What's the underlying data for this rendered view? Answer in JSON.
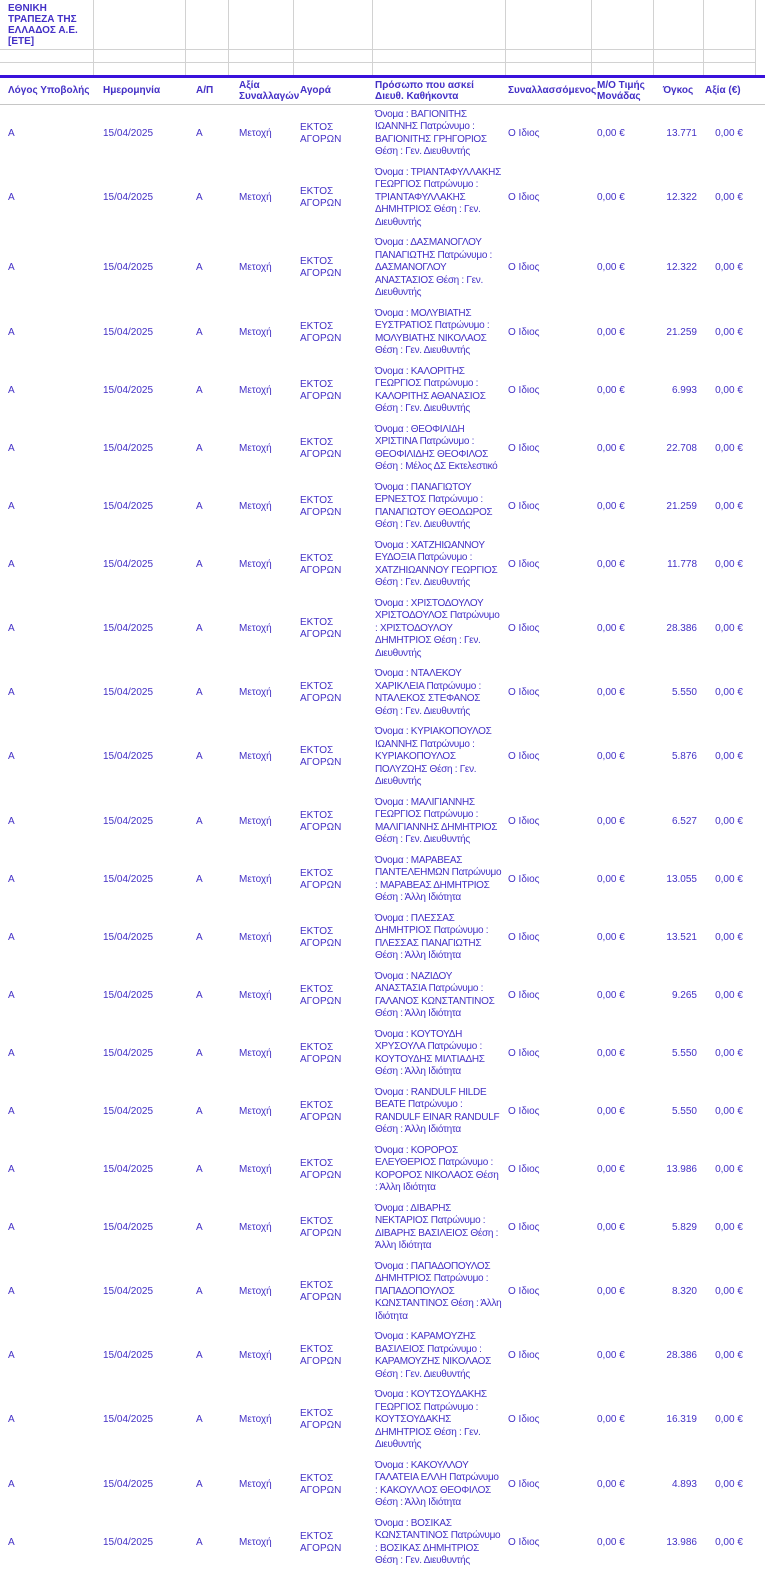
{
  "page": {
    "company": "ΕΘΝΙΚΗ ΤΡΑΠΕΖΑ ΤΗΣ ΕΛΛΑΔΟΣ Α.Ε. [ΕΤΕ]"
  },
  "colors": {
    "text_blue": "#4330c6",
    "rule_blue": "#3911dc",
    "grid_gray": "#d2d2d2",
    "thin_rule_gray": "#c6c6c6",
    "background": "#ffffff"
  },
  "table": {
    "headers": [
      "Λόγος Υποβολής",
      "Ημερομηνία",
      "Α/Π",
      "Αξία Συναλλαγών",
      "Αγορά",
      "Πρόσωπο που ασκεί Διευθ. Καθήκοντα",
      "Συναλλασσόμενος",
      "Μ/Ο Τιμής Μονάδας",
      "Όγκος",
      "Αξία (€)"
    ],
    "rows": [
      {
        "reason": "Α",
        "date": "15/04/2025",
        "ap": "Α",
        "transaction_type": "Μετοχή",
        "market": "ΕΚΤΟΣ ΑΓΟΡΩΝ",
        "person": "Όνομα : ΒΑΓΙΟΝΙΤΗΣ ΙΩΑΝΝΗΣ Πατρώνυμο : ΒΑΓΙΟΝΙΤΗΣ ΓΡΗΓΟΡΙΟΣ Θέση : Γεν. Διευθυντής",
        "counterparty": "Ο Ιδιος",
        "unit_price_avg": "0,00 €",
        "volume": "13.771",
        "value": "0,00 €"
      },
      {
        "reason": "Α",
        "date": "15/04/2025",
        "ap": "Α",
        "transaction_type": "Μετοχή",
        "market": "ΕΚΤΟΣ ΑΓΟΡΩΝ",
        "person": "Όνομα : ΤΡΙΑΝΤΑΦΥΛΛΑΚΗΣ ΓΕΩΡΓΙΟΣ Πατρώνυμο : ΤΡΙΑΝΤΑΦΥΛΛΑΚΗΣ ΔΗΜΗΤΡΙΟΣ Θέση : Γεν. Διευθυντής",
        "counterparty": "Ο Ιδιος",
        "unit_price_avg": "0,00 €",
        "volume": "12.322",
        "value": "0,00 €"
      },
      {
        "reason": "Α",
        "date": "15/04/2025",
        "ap": "Α",
        "transaction_type": "Μετοχή",
        "market": "ΕΚΤΟΣ ΑΓΟΡΩΝ",
        "person": "Όνομα : ΔΑΣΜΑΝΟΓΛΟΥ ΠΑΝΑΓΙΩΤΗΣ Πατρώνυμο : ΔΑΣΜΑΝΟΓΛΟΥ ΑΝΑΣΤΑΣΙΟΣ Θέση : Γεν. Διευθυντής",
        "counterparty": "Ο Ιδιος",
        "unit_price_avg": "0,00 €",
        "volume": "12.322",
        "value": "0,00 €"
      },
      {
        "reason": "Α",
        "date": "15/04/2025",
        "ap": "Α",
        "transaction_type": "Μετοχή",
        "market": "ΕΚΤΟΣ ΑΓΟΡΩΝ",
        "person": "Όνομα : ΜΟΛΥΒΙΑΤΗΣ ΕΥΣΤΡΑΤΙΟΣ Πατρώνυμο : ΜΟΛΥΒΙΑΤΗΣ ΝΙΚΟΛΑΟΣ Θέση : Γεν. Διευθυντής",
        "counterparty": "Ο Ιδιος",
        "unit_price_avg": "0,00 €",
        "volume": "21.259",
        "value": "0,00 €"
      },
      {
        "reason": "Α",
        "date": "15/04/2025",
        "ap": "Α",
        "transaction_type": "Μετοχή",
        "market": "ΕΚΤΟΣ ΑΓΟΡΩΝ",
        "person": "Όνομα : ΚΑΛΟΡΙΤΗΣ ΓΕΩΡΓΙΟΣ Πατρώνυμο : ΚΑΛΟΡΙΤΗΣ ΑΘΑΝΑΣΙΟΣ Θέση : Γεν. Διευθυντής",
        "counterparty": "Ο Ιδιος",
        "unit_price_avg": "0,00 €",
        "volume": "6.993",
        "value": "0,00 €"
      },
      {
        "reason": "Α",
        "date": "15/04/2025",
        "ap": "Α",
        "transaction_type": "Μετοχή",
        "market": "ΕΚΤΟΣ ΑΓΟΡΩΝ",
        "person": "Όνομα : ΘΕΟΦΙΛΙΔΗ ΧΡΙΣΤΙΝΑ Πατρώνυμο : ΘΕΟΦΙΛΙΔΗΣ ΘΕΟΦΙΛΟΣ Θέση : Μέλος ΔΣ Εκτελεστικό",
        "counterparty": "Ο Ιδιος",
        "unit_price_avg": "0,00 €",
        "volume": "22.708",
        "value": "0,00 €"
      },
      {
        "reason": "Α",
        "date": "15/04/2025",
        "ap": "Α",
        "transaction_type": "Μετοχή",
        "market": "ΕΚΤΟΣ ΑΓΟΡΩΝ",
        "person": "Όνομα : ΠΑΝΑΓΙΩΤΟΥ ΕΡΝΕΣΤΟΣ Πατρώνυμο : ΠΑΝΑΓΙΩΤΟΥ ΘΕΟΔΩΡΟΣ Θέση : Γεν. Διευθυντής",
        "counterparty": "Ο Ιδιος",
        "unit_price_avg": "0,00 €",
        "volume": "21.259",
        "value": "0,00 €"
      },
      {
        "reason": "Α",
        "date": "15/04/2025",
        "ap": "Α",
        "transaction_type": "Μετοχή",
        "market": "ΕΚΤΟΣ ΑΓΟΡΩΝ",
        "person": "Όνομα : ΧΑΤΖΗΙΩΑΝΝΟΥ ΕΥΔΟΞΙΑ Πατρώνυμο : ΧΑΤΖΗΙΩΑΝΝΟΥ ΓΕΩΡΓΙΟΣ Θέση : Γεν. Διευθυντής",
        "counterparty": "Ο Ιδιος",
        "unit_price_avg": "0,00 €",
        "volume": "11.778",
        "value": "0,00 €"
      },
      {
        "reason": "Α",
        "date": "15/04/2025",
        "ap": "Α",
        "transaction_type": "Μετοχή",
        "market": "ΕΚΤΟΣ ΑΓΟΡΩΝ",
        "person": "Όνομα : ΧΡΙΣΤΟΔΟΥΛΟΥ ΧΡΙΣΤΟΔΟΥΛΟΣ Πατρώνυμο : ΧΡΙΣΤΟΔΟΥΛΟΥ ΔΗΜΗΤΡΙΟΣ Θέση : Γεν. Διευθυντής",
        "counterparty": "Ο Ιδιος",
        "unit_price_avg": "0,00 €",
        "volume": "28.386",
        "value": "0,00 €"
      },
      {
        "reason": "Α",
        "date": "15/04/2025",
        "ap": "Α",
        "transaction_type": "Μετοχή",
        "market": "ΕΚΤΟΣ ΑΓΟΡΩΝ",
        "person": "Όνομα : ΝΤΑΛΕΚΟΥ ΧΑΡΙΚΛΕΙΑ Πατρώνυμο : ΝΤΑΛΕΚΟΣ ΣΤΕΦΑΝΟΣ Θέση : Γεν. Διευθυντής",
        "counterparty": "Ο Ιδιος",
        "unit_price_avg": "0,00 €",
        "volume": "5.550",
        "value": "0,00 €"
      },
      {
        "reason": "Α",
        "date": "15/04/2025",
        "ap": "Α",
        "transaction_type": "Μετοχή",
        "market": "ΕΚΤΟΣ ΑΓΟΡΩΝ",
        "person": "Όνομα : ΚΥΡΙΑΚΟΠΟΥΛΟΣ ΙΩΑΝΝΗΣ Πατρώνυμο : ΚΥΡΙΑΚΟΠΟΥΛΟΣ ΠΟΛΥΖΩΗΣ Θέση : Γεν. Διευθυντής",
        "counterparty": "Ο Ιδιος",
        "unit_price_avg": "0,00 €",
        "volume": "5.876",
        "value": "0,00 €"
      },
      {
        "reason": "Α",
        "date": "15/04/2025",
        "ap": "Α",
        "transaction_type": "Μετοχή",
        "market": "ΕΚΤΟΣ ΑΓΟΡΩΝ",
        "person": "Όνομα : ΜΑΛΙΓΙΑΝΝΗΣ ΓΕΩΡΓΙΟΣ Πατρώνυμο : ΜΑΛΙΓΙΑΝΝΗΣ ΔΗΜΗΤΡΙΟΣ Θέση : Γεν. Διευθυντής",
        "counterparty": "Ο Ιδιος",
        "unit_price_avg": "0,00 €",
        "volume": "6.527",
        "value": "0,00 €"
      },
      {
        "reason": "Α",
        "date": "15/04/2025",
        "ap": "Α",
        "transaction_type": "Μετοχή",
        "market": "ΕΚΤΟΣ ΑΓΟΡΩΝ",
        "person": "Όνομα : ΜΑΡΑΒΕΑΣ ΠΑΝΤΕΛΕΗΜΩΝ Πατρώνυμο : ΜΑΡΑΒΕΑΣ ΔΗΜΗΤΡΙΟΣ Θέση : Άλλη Ιδιότητα",
        "counterparty": "Ο Ιδιος",
        "unit_price_avg": "0,00 €",
        "volume": "13.055",
        "value": "0,00 €"
      },
      {
        "reason": "Α",
        "date": "15/04/2025",
        "ap": "Α",
        "transaction_type": "Μετοχή",
        "market": "ΕΚΤΟΣ ΑΓΟΡΩΝ",
        "person": "Όνομα : ΠΛΕΣΣΑΣ ΔΗΜΗΤΡΙΟΣ Πατρώνυμο : ΠΛΕΣΣΑΣ ΠΑΝΑΓΙΩΤΗΣ Θέση : Άλλη Ιδιότητα",
        "counterparty": "Ο Ιδιος",
        "unit_price_avg": "0,00 €",
        "volume": "13.521",
        "value": "0,00 €"
      },
      {
        "reason": "Α",
        "date": "15/04/2025",
        "ap": "Α",
        "transaction_type": "Μετοχή",
        "market": "ΕΚΤΟΣ ΑΓΟΡΩΝ",
        "person": "Όνομα : ΝΑΖΙΔΟΥ ΑΝΑΣΤΑΣΙΑ Πατρώνυμο : ΓΑΛΑΝΟΣ ΚΩΝΣΤΑΝΤΙΝΟΣ Θέση : Άλλη Ιδιότητα",
        "counterparty": "Ο Ιδιος",
        "unit_price_avg": "0,00 €",
        "volume": "9.265",
        "value": "0,00 €"
      },
      {
        "reason": "Α",
        "date": "15/04/2025",
        "ap": "Α",
        "transaction_type": "Μετοχή",
        "market": "ΕΚΤΟΣ ΑΓΟΡΩΝ",
        "person": "Όνομα : ΚΟΥΤΟΥΔΗ ΧΡΥΣΟΥΛΑ Πατρώνυμο : ΚΟΥΤΟΥΔΗΣ ΜΙΛΤΙΑΔΗΣ Θέση : Άλλη Ιδιότητα",
        "counterparty": "Ο Ιδιος",
        "unit_price_avg": "0,00 €",
        "volume": "5.550",
        "value": "0,00 €"
      },
      {
        "reason": "Α",
        "date": "15/04/2025",
        "ap": "Α",
        "transaction_type": "Μετοχή",
        "market": "ΕΚΤΟΣ ΑΓΟΡΩΝ",
        "person": "Όνομα : RANDULF HILDE BEATE Πατρώνυμο : RANDULF EINAR RANDULF Θέση : Άλλη Ιδιότητα",
        "counterparty": "Ο Ιδιος",
        "unit_price_avg": "0,00 €",
        "volume": "5.550",
        "value": "0,00 €"
      },
      {
        "reason": "Α",
        "date": "15/04/2025",
        "ap": "Α",
        "transaction_type": "Μετοχή",
        "market": "ΕΚΤΟΣ ΑΓΟΡΩΝ",
        "person": "Όνομα : ΚΟΡΟΡΟΣ ΕΛΕΥΘΕΡΙΟΣ Πατρώνυμο : ΚΟΡΟΡΟΣ ΝΙΚΟΛΑΟΣ Θέση : Άλλη Ιδιότητα",
        "counterparty": "Ο Ιδιος",
        "unit_price_avg": "0,00 €",
        "volume": "13.986",
        "value": "0,00 €"
      },
      {
        "reason": "Α",
        "date": "15/04/2025",
        "ap": "Α",
        "transaction_type": "Μετοχή",
        "market": "ΕΚΤΟΣ ΑΓΟΡΩΝ",
        "person": "Όνομα : ΔΙΒΑΡΗΣ ΝΕΚΤΑΡΙΟΣ Πατρώνυμο : ΔΙΒΑΡΗΣ ΒΑΣΙΛΕΙΟΣ Θέση : Άλλη Ιδιότητα",
        "counterparty": "Ο Ιδιος",
        "unit_price_avg": "0,00 €",
        "volume": "5.829",
        "value": "0,00 €"
      },
      {
        "reason": "Α",
        "date": "15/04/2025",
        "ap": "Α",
        "transaction_type": "Μετοχή",
        "market": "ΕΚΤΟΣ ΑΓΟΡΩΝ",
        "person": "Όνομα : ΠΑΠΑΔΟΠΟΥΛΟΣ ΔΗΜΗΤΡΙΟΣ Πατρώνυμο : ΠΑΠΑΔΟΠΟΥΛΟΣ ΚΩΝΣΤΑΝΤΙΝΟΣ Θέση : Άλλη Ιδιότητα",
        "counterparty": "Ο Ιδιος",
        "unit_price_avg": "0,00 €",
        "volume": "8.320",
        "value": "0,00 €"
      },
      {
        "reason": "Α",
        "date": "15/04/2025",
        "ap": "Α",
        "transaction_type": "Μετοχή",
        "market": "ΕΚΤΟΣ ΑΓΟΡΩΝ",
        "person": "Όνομα : ΚΑΡΑΜΟΥΖΗΣ ΒΑΣΙΛΕΙΟΣ Πατρώνυμο : ΚΑΡΑΜΟΥΖΗΣ ΝΙΚΟΛΑΟΣ Θέση : Γεν. Διευθυντής",
        "counterparty": "Ο Ιδιος",
        "unit_price_avg": "0,00 €",
        "volume": "28.386",
        "value": "0,00 €"
      },
      {
        "reason": "Α",
        "date": "15/04/2025",
        "ap": "Α",
        "transaction_type": "Μετοχή",
        "market": "ΕΚΤΟΣ ΑΓΟΡΩΝ",
        "person": "Όνομα : ΚΟΥΤΣΟΥΔΑΚΗΣ ΓΕΩΡΓΙΟΣ Πατρώνυμο : ΚΟΥΤΣΟΥΔΑΚΗΣ ΔΗΜΗΤΡΙΟΣ Θέση : Γεν. Διευθυντής",
        "counterparty": "Ο Ιδιος",
        "unit_price_avg": "0,00 €",
        "volume": "16.319",
        "value": "0,00 €"
      },
      {
        "reason": "Α",
        "date": "15/04/2025",
        "ap": "Α",
        "transaction_type": "Μετοχή",
        "market": "ΕΚΤΟΣ ΑΓΟΡΩΝ",
        "person": "Όνομα : ΚΑΚΟΥΛΛΟΥ ΓΑΛΑΤΕΙΑ ΕΛΛΗ Πατρώνυμο : ΚΑΚΟΥΛΛΟΣ ΘΕΟΦΙΛΟΣ Θέση : Άλλη Ιδιότητα",
        "counterparty": "Ο Ιδιος",
        "unit_price_avg": "0,00 €",
        "volume": "4.893",
        "value": "0,00 €"
      },
      {
        "reason": "Α",
        "date": "15/04/2025",
        "ap": "Α",
        "transaction_type": "Μετοχή",
        "market": "ΕΚΤΟΣ ΑΓΟΡΩΝ",
        "person": "Όνομα : ΒΟΣΙΚΑΣ ΚΩΝΣΤΑΝΤΙΝΟΣ Πατρώνυμο : ΒΟΣΙΚΑΣ ΔΗΜΗΤΡΙΟΣ Θέση : Γεν. Διευθυντής",
        "counterparty": "Ο Ιδιος",
        "unit_price_avg": "0,00 €",
        "volume": "13.986",
        "value": "0,00 €"
      }
    ]
  }
}
